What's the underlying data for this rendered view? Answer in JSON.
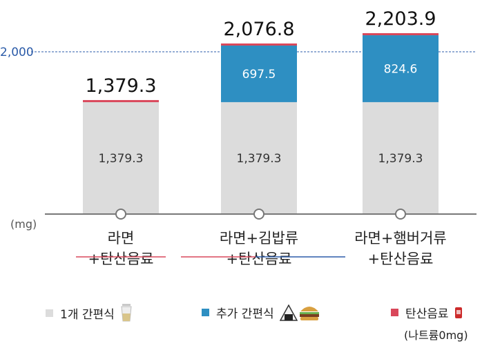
{
  "chart_data": {
    "type": "bar",
    "stacked": true,
    "categories": [
      [
        "라면",
        "+탄산음료"
      ],
      [
        "라면+김밥류",
        "+탄산음료"
      ],
      [
        "라면+햄버거류",
        "+탄산음료"
      ]
    ],
    "series": [
      {
        "name": "1개 간편식",
        "color": "#dcdcdc",
        "values": [
          1379.3,
          1379.3,
          1379.3
        ],
        "value_labels": [
          "1,379.3",
          "1,379.3",
          "1,379.3"
        ]
      },
      {
        "name": "추가 간편식",
        "color": "#2e8fc2",
        "values": [
          0,
          697.5,
          824.6
        ],
        "value_labels": [
          "",
          "697.5",
          "824.6"
        ]
      },
      {
        "name": "탄산음료",
        "color": "#d9475a",
        "values": [
          0,
          0,
          0
        ],
        "value_labels": [
          "",
          "",
          ""
        ]
      }
    ],
    "totals": [
      "1,379.3",
      "2,076.8",
      "2,203.9"
    ],
    "reference_line": {
      "value": 2000,
      "label": "2,000",
      "color": "#2b5ba8"
    },
    "ylabel": "(mg)",
    "ylim": [
      0,
      2300
    ],
    "legend_note": "(나트륨0mg)",
    "legend_placement": "bottom"
  }
}
